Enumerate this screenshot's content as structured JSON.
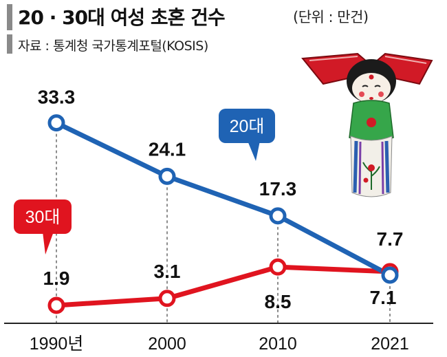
{
  "header": {
    "title": "20 · 30대 여성 초혼 건수",
    "unit": "(단위 : 만건)",
    "source": "자료 : 통계청 국가통계포털(KOSIS)"
  },
  "colors": {
    "series_20s": "#1f63b4",
    "series_30s": "#e0141f",
    "axis": "#222222",
    "grid": "#666666"
  },
  "chart_data": {
    "type": "line",
    "title": "20 · 30대 여성 초혼 건수",
    "unit": "(단위 : 만건)",
    "categories": [
      "1990년",
      "2000",
      "2010",
      "2021"
    ],
    "x": [
      1990,
      2000,
      2010,
      2021
    ],
    "series": [
      {
        "name": "20대",
        "values": [
          33.3,
          24.1,
          17.3,
          7.1
        ],
        "labels": [
          "33.3",
          "24.1",
          "17.3",
          "7.1"
        ]
      },
      {
        "name": "30대",
        "values": [
          1.9,
          3.1,
          8.5,
          7.7
        ],
        "labels": [
          "1.9",
          "3.1",
          "8.5",
          "7.7"
        ]
      }
    ],
    "ylim": [
      0,
      36
    ],
    "grid": "vertical dashed",
    "legend": "callout tags"
  },
  "illustration": {
    "name": "korean-bride-doll"
  }
}
